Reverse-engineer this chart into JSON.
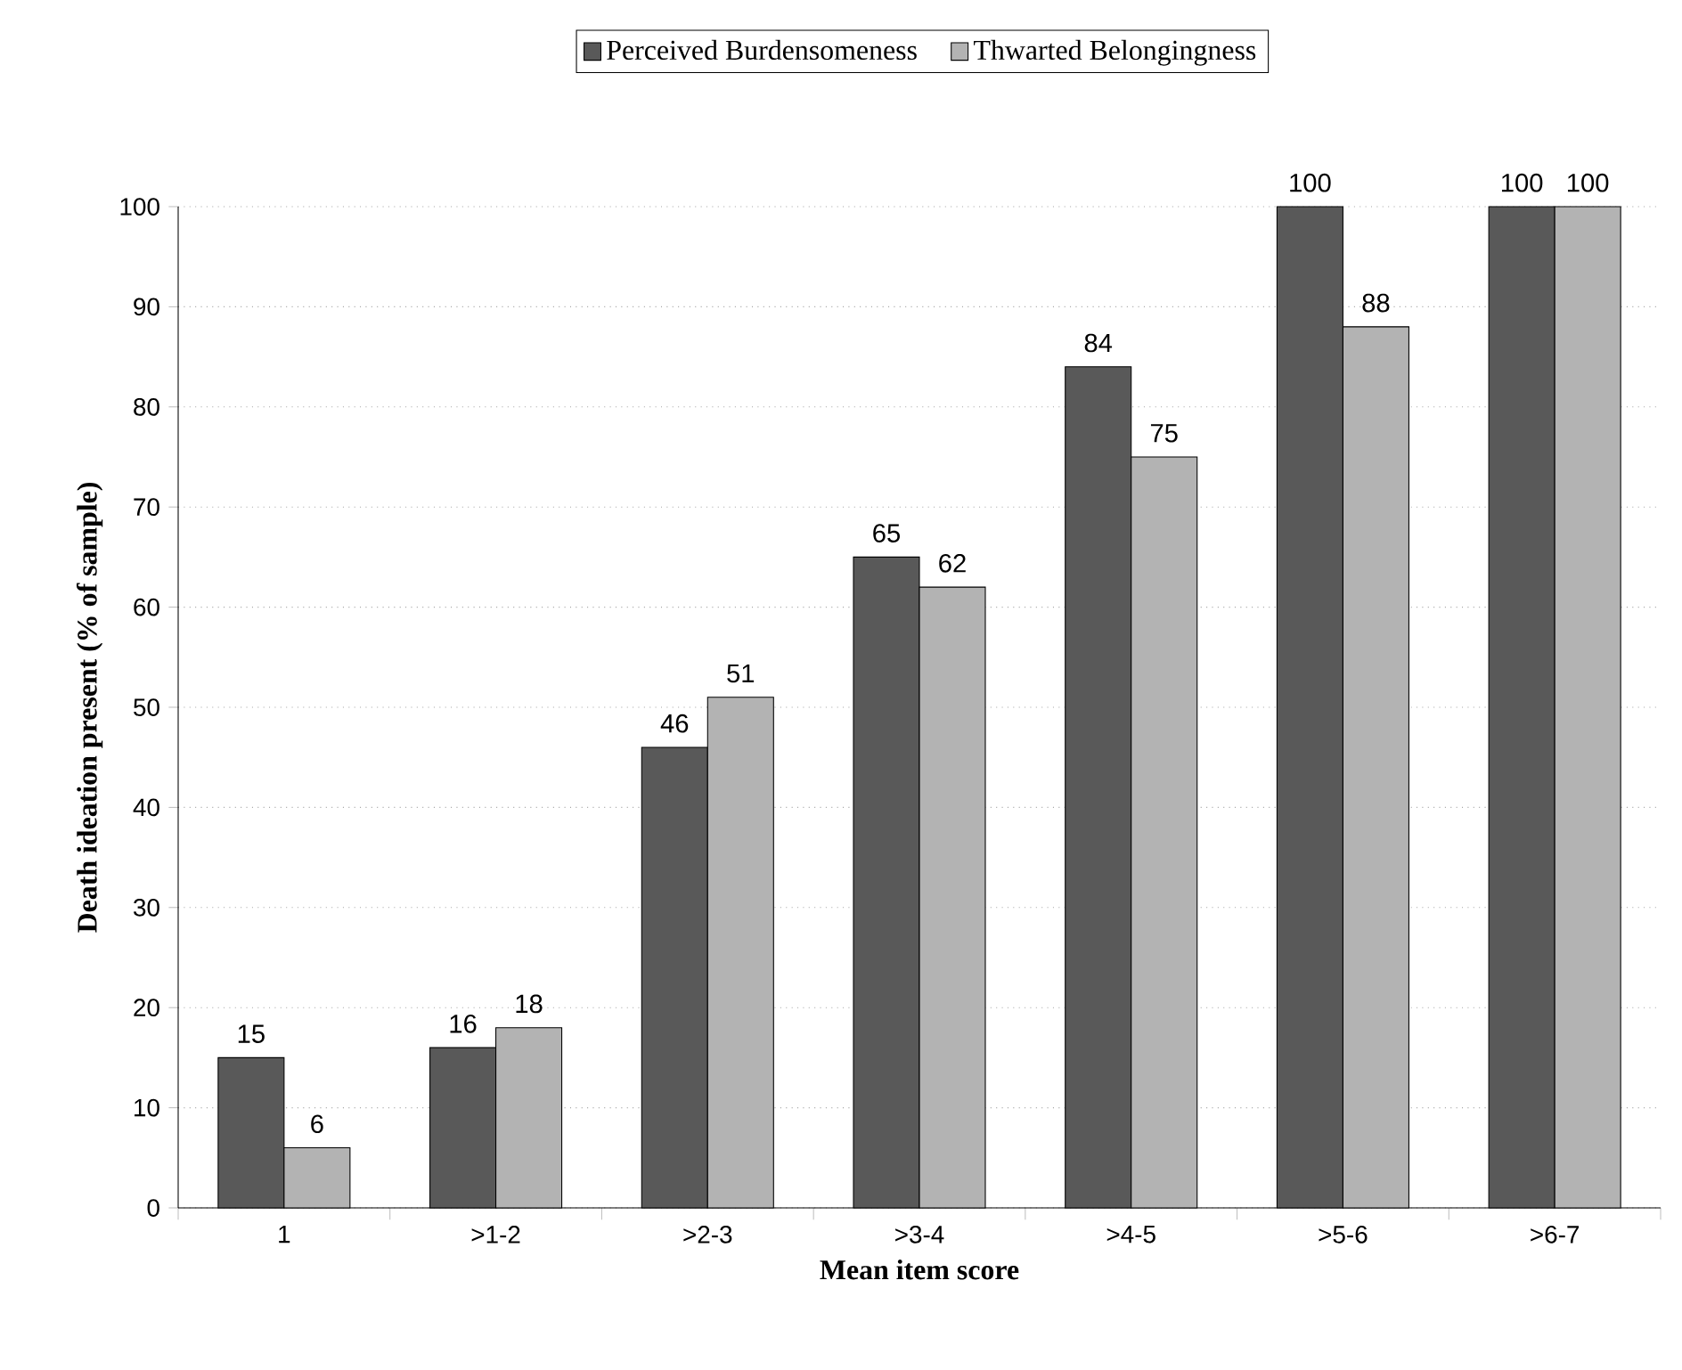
{
  "chart_data": {
    "type": "bar",
    "xlabel": "Mean item score",
    "ylabel": "Death  ideation present (% of sample)",
    "categories": [
      "1",
      ">1-2",
      ">2-3",
      ">3-4",
      ">4-5",
      ">5-6",
      ">6-7"
    ],
    "series": [
      {
        "name": "Perceived Burdensomeness",
        "color": "#595959",
        "values": [
          15,
          16,
          46,
          65,
          84,
          100,
          100
        ]
      },
      {
        "name": "Thwarted Belongingness",
        "color": "#b3b3b3",
        "values": [
          6,
          18,
          51,
          62,
          75,
          88,
          100
        ]
      }
    ],
    "ylim": [
      0,
      100
    ],
    "yticks": [
      0,
      10,
      20,
      30,
      40,
      50,
      60,
      70,
      80,
      90,
      100
    ],
    "grid": "y",
    "legend": "top",
    "data_labels": true
  }
}
